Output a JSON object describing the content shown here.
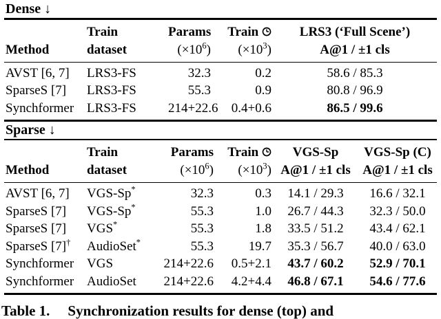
{
  "colors": {
    "background": "#ffffff",
    "text": "#000000",
    "rule": "#000000"
  },
  "icons": {
    "clock": "clock-icon"
  },
  "dense": {
    "label": "Dense ↓",
    "columns": [
      {
        "key": "method",
        "align": "left",
        "l1": "",
        "l2": "Method"
      },
      {
        "key": "train-dataset",
        "align": "left",
        "l1": "Train",
        "l2": "dataset"
      },
      {
        "key": "params",
        "align": "right",
        "l1": "Params",
        "l2": "(×10^{6})",
        "l2b": false
      },
      {
        "key": "train-time",
        "align": "right",
        "l1": "Train {clock}",
        "l2": "(×10^{3})",
        "l2b": false
      },
      {
        "key": "lrs3-full-scene",
        "align": "center",
        "l1": "LRS3 (‘Full Scene’)",
        "l2": "A@1 / ±1 cls",
        "pad": true
      }
    ],
    "rows": [
      [
        "AVST [6, 7]",
        "LRS3-FS",
        "32.3",
        "0.2",
        "58.6 / 85.3"
      ],
      [
        "SparseS [7]",
        "LRS3-FS",
        "55.3",
        "0.9",
        "80.8 / 96.9"
      ],
      [
        "Synchformer",
        "LRS3-FS",
        "214+22.6",
        "0.4+0.6",
        {
          "text": "86.5 / 99.6",
          "bold": true
        }
      ]
    ]
  },
  "sparse": {
    "label": "Sparse ↓",
    "columns": [
      {
        "key": "method",
        "align": "left",
        "l1": "",
        "l2": "Method"
      },
      {
        "key": "train-dataset",
        "align": "left",
        "l1": "Train",
        "l2": "dataset"
      },
      {
        "key": "params",
        "align": "right",
        "l1": "Params",
        "l2": "(×10^{6})",
        "l2b": false
      },
      {
        "key": "train-time",
        "align": "right",
        "l1": "Train {clock}",
        "l2": "(×10^{3})",
        "l2b": false
      },
      {
        "key": "vgs-sp",
        "align": "center",
        "l1": "VGS-Sp",
        "l2": "A@1 / ±1 cls"
      },
      {
        "key": "vgs-sp-c",
        "align": "center",
        "l1": "VGS-Sp (C)",
        "l2": "A@1 / ±1 cls"
      }
    ],
    "rows": [
      [
        "AVST [6, 7]",
        "VGS-Sp^{*}",
        "32.3",
        "0.3",
        "14.1 / 29.3",
        "16.6 / 32.1"
      ],
      [
        "SparseS [7]",
        "VGS-Sp^{*}",
        "55.3",
        "1.0",
        "26.7 / 44.3",
        "32.3 / 50.0"
      ],
      [
        "SparseS [7]",
        "VGS^{*}",
        "55.3",
        "1.8",
        "33.5 / 51.2",
        "43.4 / 62.1"
      ],
      [
        "SparseS [7]^{†}",
        "AudioSet^{*}",
        "55.3",
        "19.7",
        "35.3 / 56.7",
        "40.0 / 63.0"
      ],
      [
        "Synchformer",
        "VGS",
        "214+22.6",
        "0.5+2.1",
        {
          "text": "43.7 / 60.2",
          "bold": true
        },
        {
          "text": "52.9 / 70.1",
          "bold": true
        }
      ],
      [
        "Synchformer",
        "AudioSet",
        "214+22.6",
        "4.2+4.4",
        {
          "text": "46.8 / 67.1",
          "bold": true
        },
        {
          "text": "54.6 / 77.6",
          "bold": true
        }
      ]
    ]
  },
  "caption": {
    "label": "Table 1.",
    "text": "Synchronization results for dense (top) and"
  }
}
